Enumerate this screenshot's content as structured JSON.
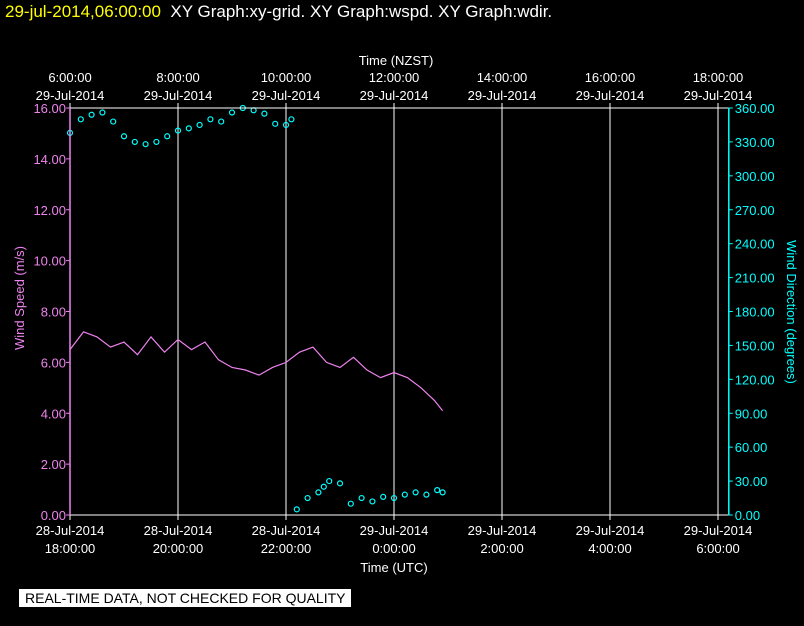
{
  "header": {
    "timestamp": "29-jul-2014,06:00:00",
    "graphs_text": "XY Graph:xy-grid.  XY Graph:wspd.  XY Graph:wdir."
  },
  "footer": {
    "notice": "REAL-TIME DATA, NOT CHECKED FOR QUALITY"
  },
  "colors": {
    "background": "#000000",
    "grid": "#ffffff",
    "wind_speed": "#ee82ee",
    "wind_direction": "#00ffff",
    "timestamp": "#ffff00"
  },
  "chart_data": {
    "type": "line",
    "top_axis_title": "Time (NZST)",
    "bottom_axis_title": "Time (UTC)",
    "top_ticks": [
      {
        "h": 0,
        "date": "29-Jul-2014",
        "time": "6:00:00"
      },
      {
        "h": 2,
        "date": "29-Jul-2014",
        "time": "8:00:00"
      },
      {
        "h": 4,
        "date": "29-Jul-2014",
        "time": "10:00:00"
      },
      {
        "h": 6,
        "date": "29-Jul-2014",
        "time": "12:00:00"
      },
      {
        "h": 8,
        "date": "29-Jul-2014",
        "time": "14:00:00"
      },
      {
        "h": 10,
        "date": "29-Jul-2014",
        "time": "16:00:00"
      },
      {
        "h": 12,
        "date": "29-Jul-2014",
        "time": "18:00:00"
      }
    ],
    "bottom_ticks": [
      {
        "h": 0,
        "date": "28-Jul-2014",
        "time": "18:00:00"
      },
      {
        "h": 2,
        "date": "28-Jul-2014",
        "time": "20:00:00"
      },
      {
        "h": 4,
        "date": "28-Jul-2014",
        "time": "22:00:00"
      },
      {
        "h": 6,
        "date": "29-Jul-2014",
        "time": "0:00:00"
      },
      {
        "h": 8,
        "date": "29-Jul-2014",
        "time": "2:00:00"
      },
      {
        "h": 10,
        "date": "29-Jul-2014",
        "time": "4:00:00"
      },
      {
        "h": 12,
        "date": "29-Jul-2014",
        "time": "6:00:00"
      }
    ],
    "xlim_hours": [
      0,
      12.2
    ],
    "left_axis": {
      "label": "Wind Speed (m/s)",
      "ylim": [
        0,
        16
      ],
      "ticks": [
        "0.00",
        "2.00",
        "4.00",
        "6.00",
        "8.00",
        "10.00",
        "12.00",
        "14.00",
        "16.00"
      ]
    },
    "right_axis": {
      "label": "Wind Direction (degrees)",
      "ylim": [
        0,
        360
      ],
      "ticks": [
        "0.00",
        "30.00",
        "60.00",
        "90.00",
        "120.00",
        "150.00",
        "180.00",
        "210.00",
        "240.00",
        "270.00",
        "300.00",
        "330.00",
        "360.00"
      ]
    },
    "series": [
      {
        "name": "wspd",
        "axis": "left",
        "x_hours": [
          0.0,
          0.25,
          0.5,
          0.75,
          1.0,
          1.25,
          1.5,
          1.75,
          2.0,
          2.25,
          2.5,
          2.75,
          3.0,
          3.25,
          3.5,
          3.75,
          4.0,
          4.25,
          4.5,
          4.75,
          5.0,
          5.25,
          5.5,
          5.75,
          6.0,
          6.25,
          6.5,
          6.75,
          6.9
        ],
        "values": [
          6.5,
          7.2,
          7.0,
          6.6,
          6.8,
          6.3,
          7.0,
          6.4,
          6.9,
          6.5,
          6.8,
          6.1,
          5.8,
          5.7,
          5.5,
          5.8,
          6.0,
          6.4,
          6.6,
          6.0,
          5.8,
          6.2,
          5.7,
          5.4,
          5.6,
          5.4,
          5.0,
          4.5,
          4.1
        ]
      },
      {
        "name": "wdir",
        "axis": "right",
        "x_hours": [
          0.0,
          0.2,
          0.4,
          0.6,
          0.8,
          1.0,
          1.2,
          1.4,
          1.6,
          1.8,
          2.0,
          2.2,
          2.4,
          2.6,
          2.8,
          3.0,
          3.2,
          3.4,
          3.6,
          3.8,
          4.0,
          4.1,
          4.2,
          4.4,
          4.6,
          4.7,
          4.8,
          5.0,
          5.2,
          5.4,
          5.6,
          5.8,
          6.0,
          6.2,
          6.4,
          6.6,
          6.8,
          6.9
        ],
        "values": [
          338,
          350,
          354,
          356,
          348,
          335,
          330,
          328,
          330,
          335,
          340,
          342,
          345,
          350,
          348,
          356,
          360,
          358,
          355,
          346,
          345,
          350,
          5,
          15,
          20,
          25,
          30,
          28,
          10,
          15,
          12,
          16,
          15,
          18,
          20,
          18,
          22,
          20
        ]
      }
    ]
  }
}
